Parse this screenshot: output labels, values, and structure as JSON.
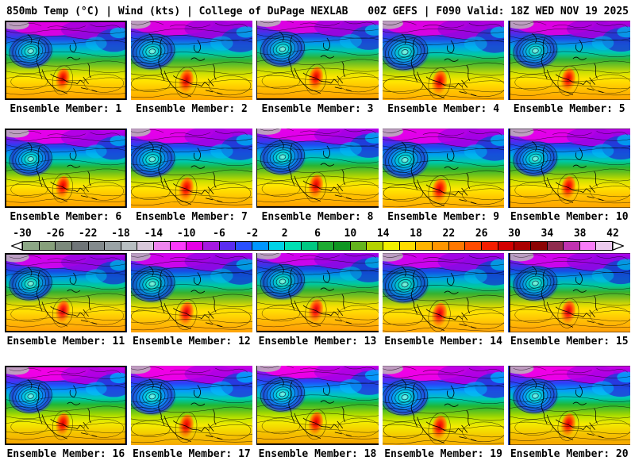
{
  "header": {
    "left": "850mb Temp (°C) | Wind (kts) | College of DuPage NEXLAB",
    "right": "00Z GEFS | F090 Valid: 18Z WED NOV 19 2025"
  },
  "panels": {
    "label_prefix": "Ensemble Member:",
    "members": [
      1,
      2,
      3,
      4,
      5,
      6,
      7,
      8,
      9,
      10,
      11,
      12,
      13,
      14,
      15,
      16,
      17,
      18,
      19,
      20
    ],
    "per_row": 5
  },
  "colorbar": {
    "tick_labels": [
      "-30",
      "-26",
      "-22",
      "-18",
      "-14",
      "-10",
      "-6",
      "-2",
      "2",
      "6",
      "10",
      "14",
      "18",
      "22",
      "26",
      "30",
      "34",
      "38",
      "42"
    ],
    "range": {
      "min": -30,
      "max": 42,
      "step": 2
    },
    "segment_colors": [
      "#8da786",
      "#87a07b",
      "#7b897b",
      "#6f7578",
      "#838a8d",
      "#9aa3a6",
      "#b7bec1",
      "#d8c8da",
      "#ee85ee",
      "#fb3bfb",
      "#e500e5",
      "#a51ae0",
      "#5a2cf0",
      "#2a50ff",
      "#0096ff",
      "#00d2e6",
      "#00e0b4",
      "#00c882",
      "#1eaa32",
      "#0f9622",
      "#64b41e",
      "#b4d200",
      "#f0f000",
      "#ffdc00",
      "#ffb400",
      "#ff9600",
      "#ff7800",
      "#ff4b00",
      "#f51e00",
      "#d20000",
      "#aa0000",
      "#8c0404",
      "#8f2c4e",
      "#c033b0",
      "#f87df8",
      "#eccaee"
    ]
  }
}
